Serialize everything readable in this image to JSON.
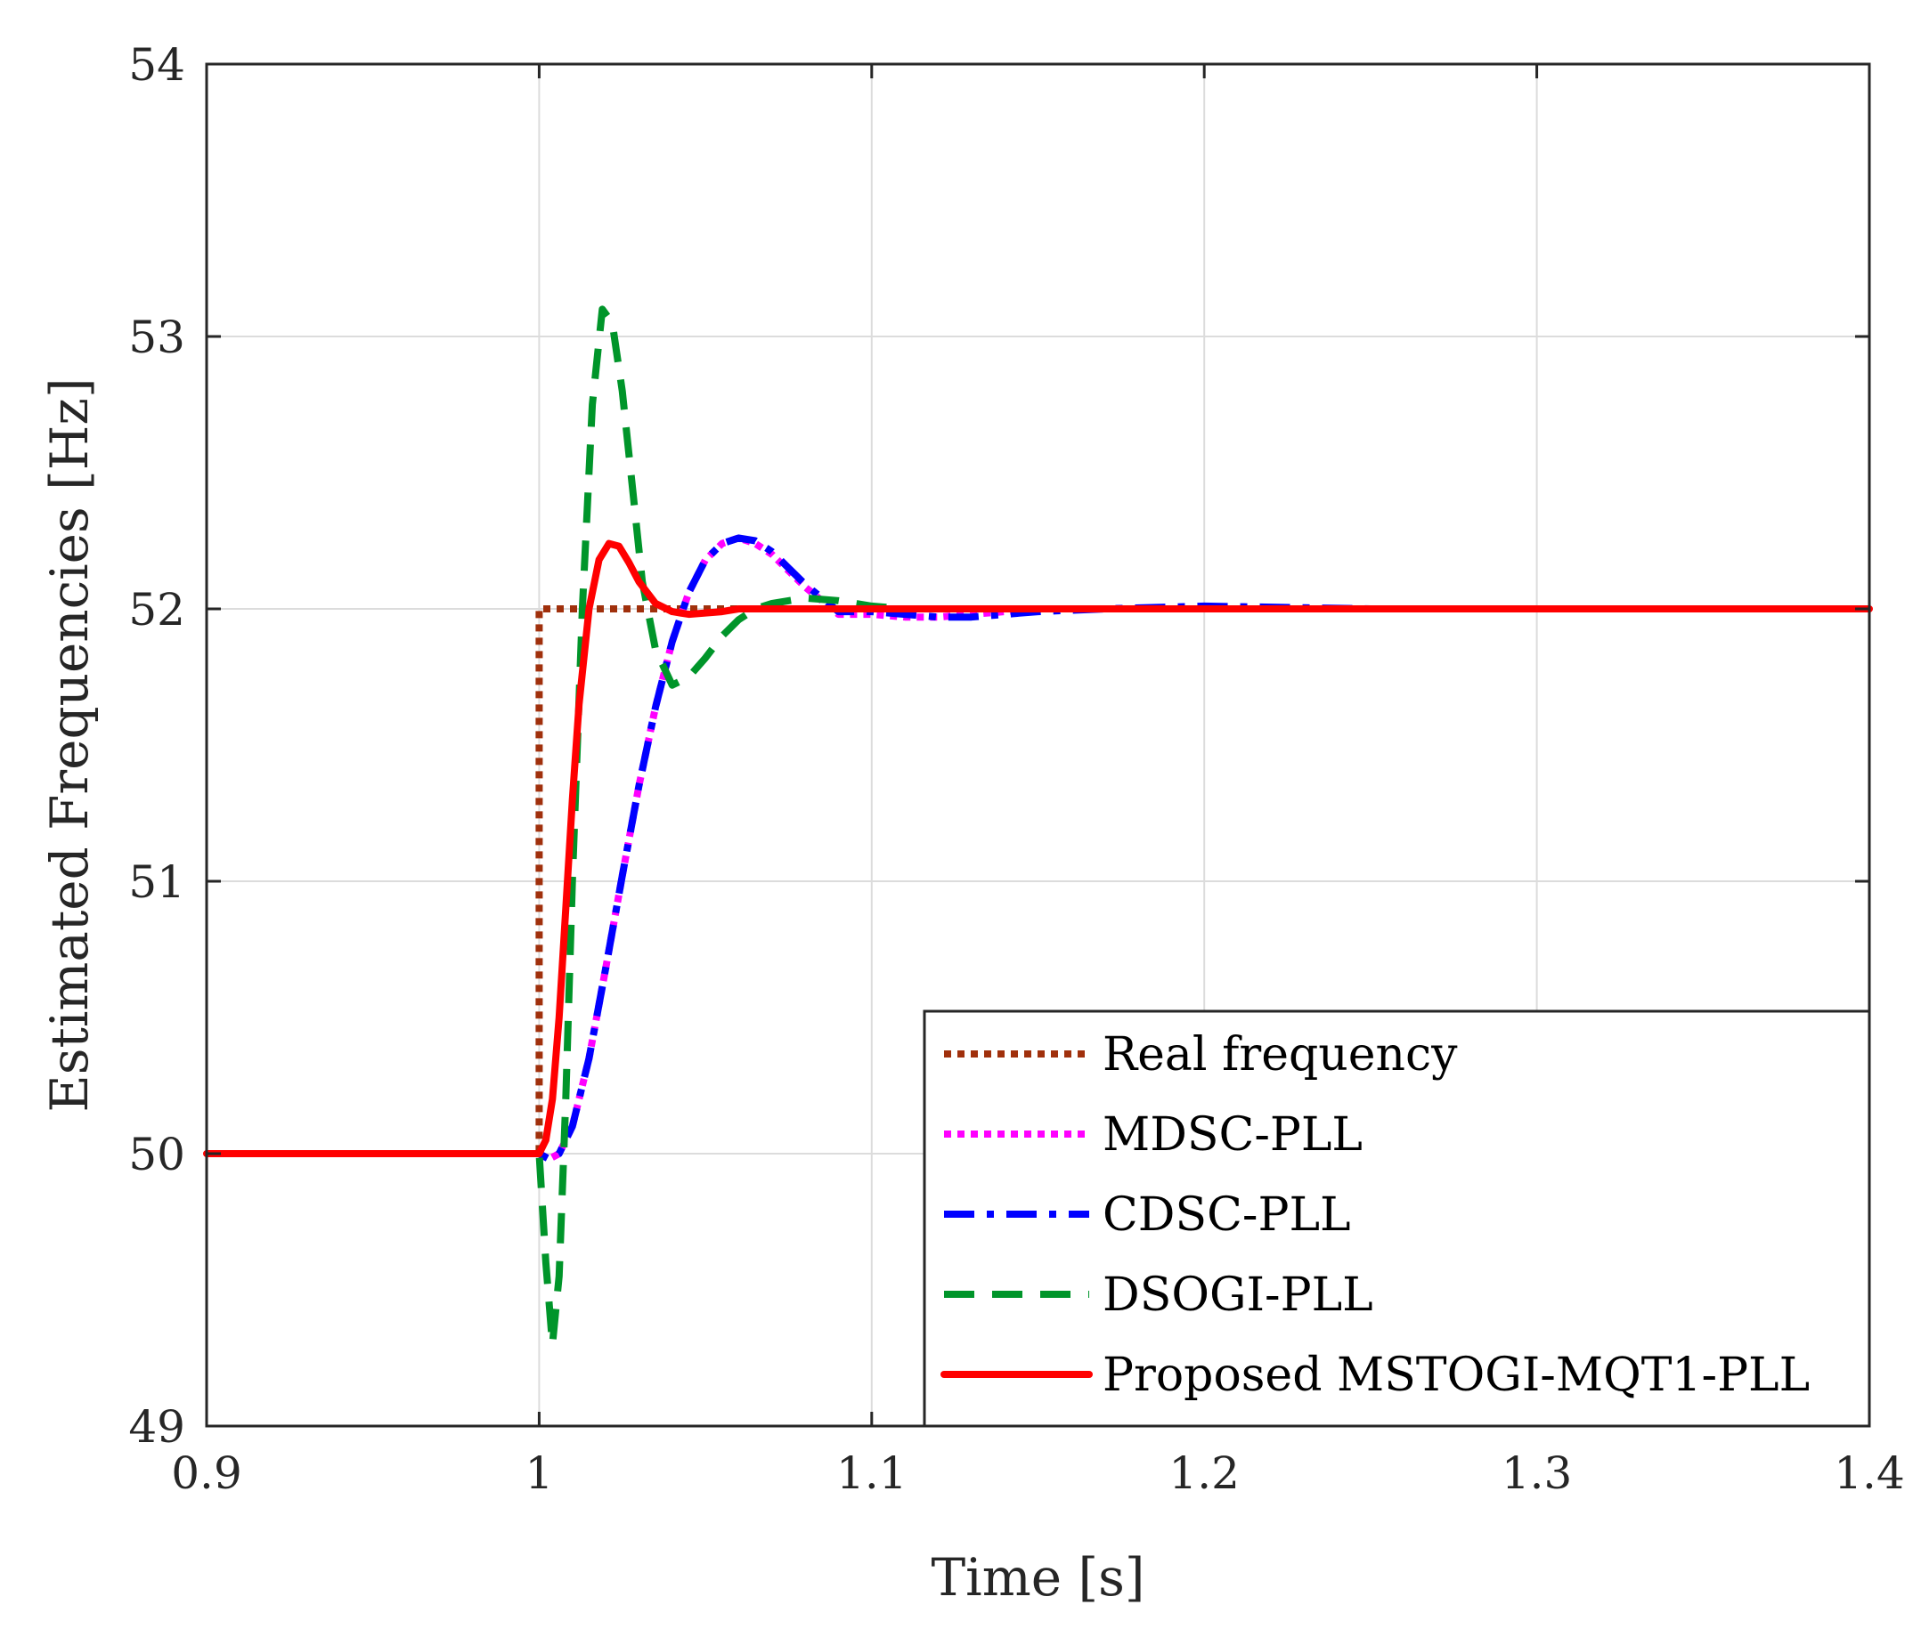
{
  "chart_data": {
    "type": "line",
    "title": "",
    "xlabel": "Time [s]",
    "ylabel": "Estimated Frequencies [Hz]",
    "xlim": [
      0.9,
      1.4
    ],
    "ylim": [
      49,
      54
    ],
    "xticks": [
      0.9,
      1.0,
      1.1,
      1.2,
      1.3,
      1.4
    ],
    "xtick_labels": [
      "0.9",
      "1",
      "1.1",
      "1.2",
      "1.3",
      "1.4"
    ],
    "yticks": [
      49,
      50,
      51,
      52,
      53,
      54
    ],
    "ytick_labels": [
      "49",
      "50",
      "51",
      "52",
      "53",
      "54"
    ],
    "grid": true,
    "legend_position": "bottom-right",
    "series": [
      {
        "name": "Real frequency",
        "color": "#a0300c",
        "style": "dotted",
        "x": [
          0.9,
          1.0,
          1.0,
          1.4
        ],
        "y": [
          50,
          50,
          52,
          52
        ]
      },
      {
        "name": "MDSC-PLL",
        "color": "#ff00ff",
        "style": "dotted",
        "x": [
          0.9,
          1.0,
          1.003,
          1.006,
          1.01,
          1.015,
          1.02,
          1.025,
          1.03,
          1.035,
          1.04,
          1.045,
          1.05,
          1.055,
          1.06,
          1.065,
          1.07,
          1.075,
          1.08,
          1.085,
          1.09,
          1.1,
          1.11,
          1.12,
          1.13,
          1.14,
          1.15,
          1.17,
          1.2,
          1.25,
          1.3,
          1.4
        ],
        "y": [
          50,
          50,
          49.98,
          50.0,
          50.1,
          50.35,
          50.68,
          51.02,
          51.35,
          51.64,
          51.88,
          52.06,
          52.18,
          52.24,
          52.26,
          52.24,
          52.2,
          52.14,
          52.08,
          52.03,
          51.98,
          51.98,
          51.97,
          51.97,
          51.98,
          51.99,
          52.0,
          52.0,
          52.0,
          52.0,
          52.0,
          52.0
        ]
      },
      {
        "name": "CDSC-PLL",
        "color": "#0000ff",
        "style": "dashdot",
        "x": [
          0.9,
          1.0,
          1.003,
          1.006,
          1.01,
          1.015,
          1.02,
          1.025,
          1.03,
          1.035,
          1.04,
          1.045,
          1.05,
          1.055,
          1.06,
          1.065,
          1.07,
          1.075,
          1.08,
          1.085,
          1.09,
          1.1,
          1.11,
          1.12,
          1.13,
          1.14,
          1.15,
          1.17,
          1.2,
          1.25,
          1.3,
          1.4
        ],
        "y": [
          50,
          50,
          49.98,
          50.0,
          50.1,
          50.35,
          50.68,
          51.02,
          51.35,
          51.64,
          51.88,
          52.06,
          52.18,
          52.24,
          52.26,
          52.25,
          52.21,
          52.15,
          52.09,
          52.04,
          51.99,
          51.99,
          51.98,
          51.97,
          51.97,
          51.98,
          51.99,
          52.0,
          52.01,
          52.0,
          52.0,
          52.0
        ]
      },
      {
        "name": "DSOGI-PLL",
        "color": "#00952a",
        "style": "dashed",
        "x": [
          0.9,
          1.0,
          1.002,
          1.004,
          1.006,
          1.008,
          1.01,
          1.013,
          1.016,
          1.019,
          1.022,
          1.025,
          1.028,
          1.031,
          1.035,
          1.04,
          1.045,
          1.05,
          1.055,
          1.06,
          1.065,
          1.07,
          1.08,
          1.09,
          1.1,
          1.11,
          1.12,
          1.14,
          1.2,
          1.3,
          1.4
        ],
        "y": [
          50,
          50,
          49.6,
          49.3,
          49.55,
          50.2,
          51.0,
          52.0,
          52.75,
          53.1,
          53.05,
          52.8,
          52.45,
          52.1,
          51.85,
          51.72,
          51.75,
          51.82,
          51.9,
          51.96,
          52.0,
          52.02,
          52.04,
          52.03,
          52.01,
          52.0,
          52.0,
          52.0,
          52.0,
          52.0,
          52.0
        ]
      },
      {
        "name": "Proposed MSTOGI-MQT1-PLL",
        "color": "#ff0000",
        "style": "solid",
        "x": [
          0.9,
          1.0,
          1.002,
          1.004,
          1.006,
          1.008,
          1.01,
          1.012,
          1.015,
          1.018,
          1.021,
          1.024,
          1.027,
          1.03,
          1.035,
          1.04,
          1.045,
          1.05,
          1.055,
          1.06,
          1.07,
          1.08,
          1.1,
          1.2,
          1.3,
          1.4
        ],
        "y": [
          50,
          50,
          50.05,
          50.2,
          50.5,
          50.9,
          51.3,
          51.65,
          52.0,
          52.18,
          52.24,
          52.23,
          52.17,
          52.1,
          52.02,
          51.99,
          51.98,
          51.985,
          51.99,
          52.0,
          52.0,
          52.0,
          52.0,
          52.0,
          52.0,
          52.0
        ]
      }
    ]
  }
}
